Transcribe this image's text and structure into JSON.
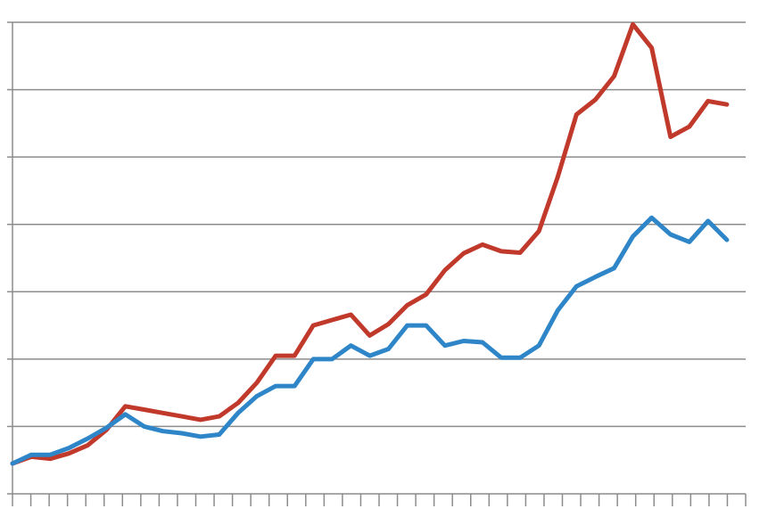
{
  "chart_data": {
    "type": "line",
    "title": "",
    "xlabel": "",
    "ylabel": "",
    "grid": true,
    "legend": "none",
    "ylim": [
      0,
      7
    ],
    "x": [
      1,
      2,
      3,
      4,
      5,
      6,
      7,
      8,
      9,
      10,
      11,
      12,
      13,
      14,
      15,
      16,
      17,
      18,
      19,
      20,
      21,
      22,
      23,
      24,
      25,
      26,
      27,
      28,
      29,
      30,
      31,
      32,
      33,
      34,
      35,
      36,
      37,
      38,
      39,
      40
    ],
    "series": [
      {
        "color": "#c0392b",
        "values": [
          0.45,
          0.55,
          0.52,
          0.6,
          0.72,
          0.95,
          1.3,
          1.25,
          1.2,
          1.15,
          1.1,
          1.15,
          1.35,
          1.65,
          2.05,
          2.05,
          2.5,
          2.58,
          2.66,
          2.35,
          2.52,
          2.8,
          2.96,
          3.32,
          3.57,
          3.7,
          3.6,
          3.58,
          3.9,
          4.7,
          5.63,
          5.85,
          6.2,
          6.97,
          6.62,
          5.3,
          5.45,
          5.83,
          5.78,
          null
        ]
      },
      {
        "color": "#2e86c8",
        "values": [
          0.45,
          0.58,
          0.58,
          0.68,
          0.82,
          0.98,
          1.18,
          1.0,
          0.93,
          0.9,
          0.85,
          0.88,
          1.2,
          1.45,
          1.6,
          1.6,
          2.0,
          2.0,
          2.2,
          2.05,
          2.15,
          2.5,
          2.5,
          2.2,
          2.27,
          2.25,
          2.02,
          2.02,
          2.2,
          2.72,
          3.08,
          3.22,
          3.35,
          3.82,
          4.1,
          3.85,
          3.74,
          4.05,
          3.77,
          null
        ]
      }
    ]
  }
}
